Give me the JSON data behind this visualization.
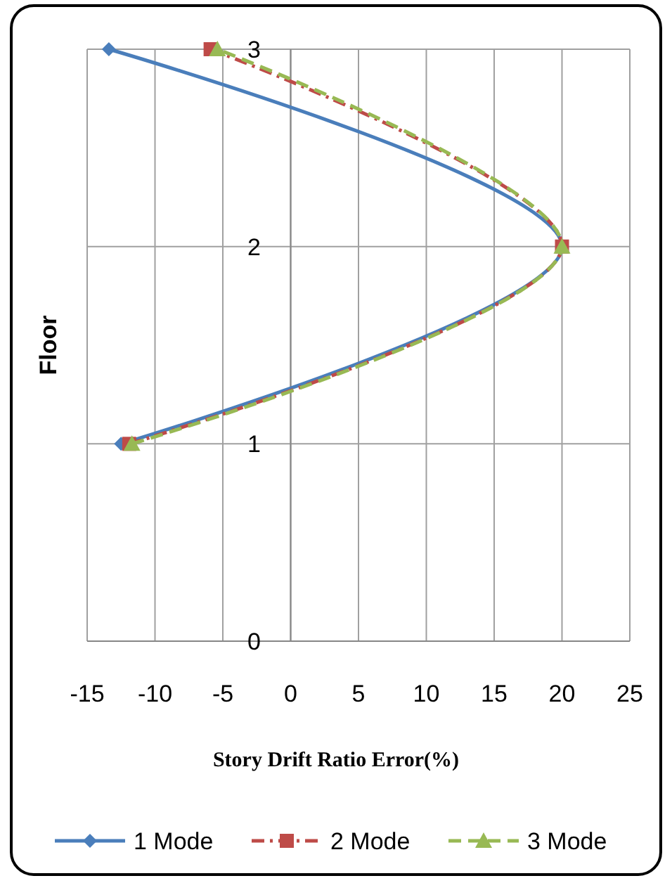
{
  "chart_data": {
    "type": "line",
    "xlabel": "Story Drift  Ratio Error(%)",
    "ylabel": "Floor",
    "xlim": [
      -15,
      25
    ],
    "xticks": [
      -15,
      -10,
      -5,
      0,
      5,
      10,
      15,
      20,
      25
    ],
    "ylim": [
      0,
      3
    ],
    "yticks": [
      0,
      1,
      2,
      3
    ],
    "grid": true,
    "legend": "bottom",
    "series": [
      {
        "name": "1 Mode",
        "color": "#4a7ebb",
        "x": [
          -12.5,
          20,
          -13.4
        ],
        "values": [
          1,
          2,
          3
        ],
        "marker": "diamond",
        "line_style": "solid"
      },
      {
        "name": "2 Mode",
        "color": "#be4b48",
        "x": [
          -11.9,
          20,
          -5.9
        ],
        "values": [
          1,
          2,
          3
        ],
        "marker": "square",
        "line_style": "dashdot"
      },
      {
        "name": "3 Mode",
        "color": "#98b954",
        "x": [
          -11.7,
          20,
          -5.4
        ],
        "values": [
          1,
          2,
          3
        ],
        "marker": "triangle",
        "line_style": "dashed"
      }
    ]
  }
}
